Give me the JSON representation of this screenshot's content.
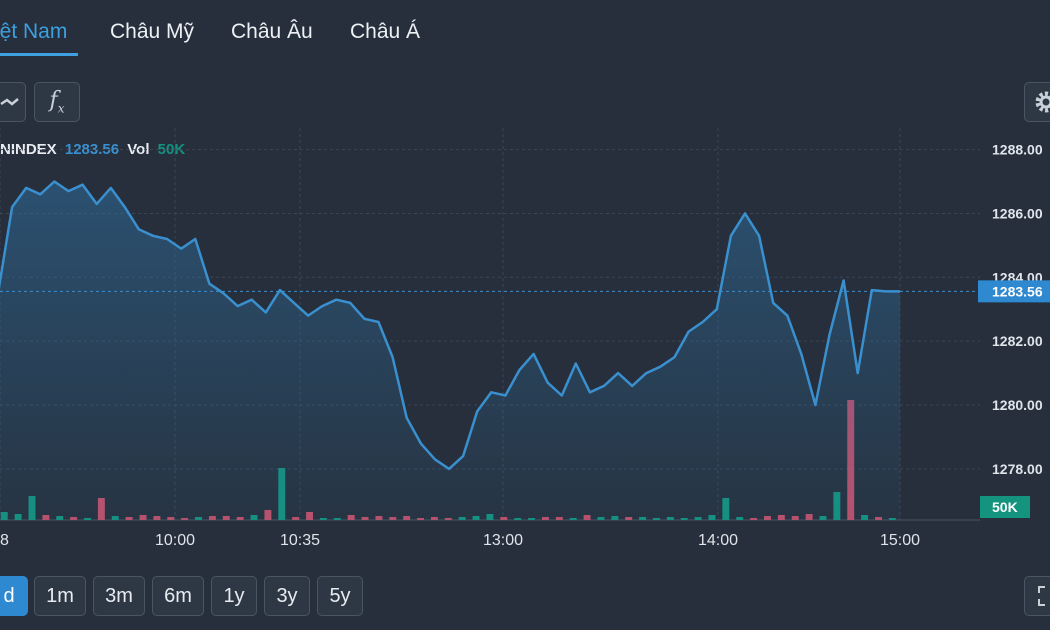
{
  "region_tabs": [
    {
      "label": "iệt Nam",
      "active": true
    },
    {
      "label": "Châu Mỹ",
      "active": false
    },
    {
      "label": "Châu Âu",
      "active": false
    },
    {
      "label": "Châu Á",
      "active": false
    }
  ],
  "toolbar": {
    "chart_type_icon": "line-chart-icon",
    "indicator_icon": "function-fx-icon",
    "indicator_label": "f",
    "indicator_sub": "x",
    "settings_icon": "gear-icon"
  },
  "legend": {
    "symbol": "NINDEX",
    "value": "1283.56",
    "vol_label": "Vol",
    "vol_value": "50K"
  },
  "range_buttons": [
    {
      "label": "d",
      "active": true
    },
    {
      "label": "1m",
      "active": false
    },
    {
      "label": "3m",
      "active": false
    },
    {
      "label": "6m",
      "active": false
    },
    {
      "label": "1y",
      "active": false
    },
    {
      "label": "3y",
      "active": false
    },
    {
      "label": "5y",
      "active": false
    }
  ],
  "expand_icon": "expand-icon",
  "colors": {
    "accent": "#3da0e0",
    "line": "#3a90cf",
    "volume_up": "#14937f",
    "volume_down": "#c2506a",
    "background": "#262f3b"
  },
  "chart_data": {
    "type": "area",
    "ylim": [
      1276.4,
      1288.3
    ],
    "y_ticks": [
      "1288.00",
      "1286.00",
      "1284.00",
      "1282.00",
      "1280.00",
      "1278.00"
    ],
    "y_tick_values": [
      1288,
      1286,
      1284,
      1282,
      1280,
      1278
    ],
    "x_ticks": [
      "8",
      "10:00",
      "10:35",
      "13:00",
      "14:00",
      "15:00"
    ],
    "current_value_label": "1283.56",
    "current_value": 1283.56,
    "volume_label": "50K",
    "grid": true,
    "series": [
      {
        "values": [
          1283.5,
          1286.2,
          1286.8,
          1286.6,
          1287.0,
          1286.7,
          1286.9,
          1286.3,
          1286.8,
          1286.2,
          1285.5,
          1285.3,
          1285.2,
          1284.9,
          1285.2,
          1283.8,
          1283.5,
          1283.1,
          1283.3,
          1282.9,
          1283.6,
          1283.2,
          1282.8,
          1283.1,
          1283.3,
          1283.2,
          1282.7,
          1282.6,
          1281.5,
          1279.6,
          1278.8,
          1278.3,
          1278.0,
          1278.4,
          1279.8,
          1280.4,
          1280.3,
          1281.1,
          1281.6,
          1280.7,
          1280.3,
          1281.3,
          1280.4,
          1280.6,
          1281.0,
          1280.6,
          1281.0,
          1281.2,
          1281.5,
          1282.3,
          1282.6,
          1283.0,
          1285.3,
          1286.0,
          1285.3,
          1283.2,
          1282.8,
          1281.6,
          1280.0,
          1282.2,
          1283.9,
          1281.0,
          1283.6,
          1283.56,
          1283.56
        ]
      }
    ],
    "volume": [
      8,
      6,
      24,
      5,
      4,
      3,
      2,
      22,
      4,
      3,
      5,
      4,
      3,
      2,
      3,
      4,
      4,
      3,
      5,
      10,
      52,
      3,
      8,
      2,
      2,
      5,
      3,
      4,
      3,
      4,
      2,
      3,
      2,
      3,
      4,
      6,
      3,
      2,
      2,
      3,
      3,
      2,
      5,
      3,
      4,
      3,
      3,
      2,
      3,
      2,
      3,
      5,
      22,
      3,
      2,
      4,
      5,
      4,
      6,
      4,
      28,
      120,
      5,
      3,
      2
    ]
  }
}
